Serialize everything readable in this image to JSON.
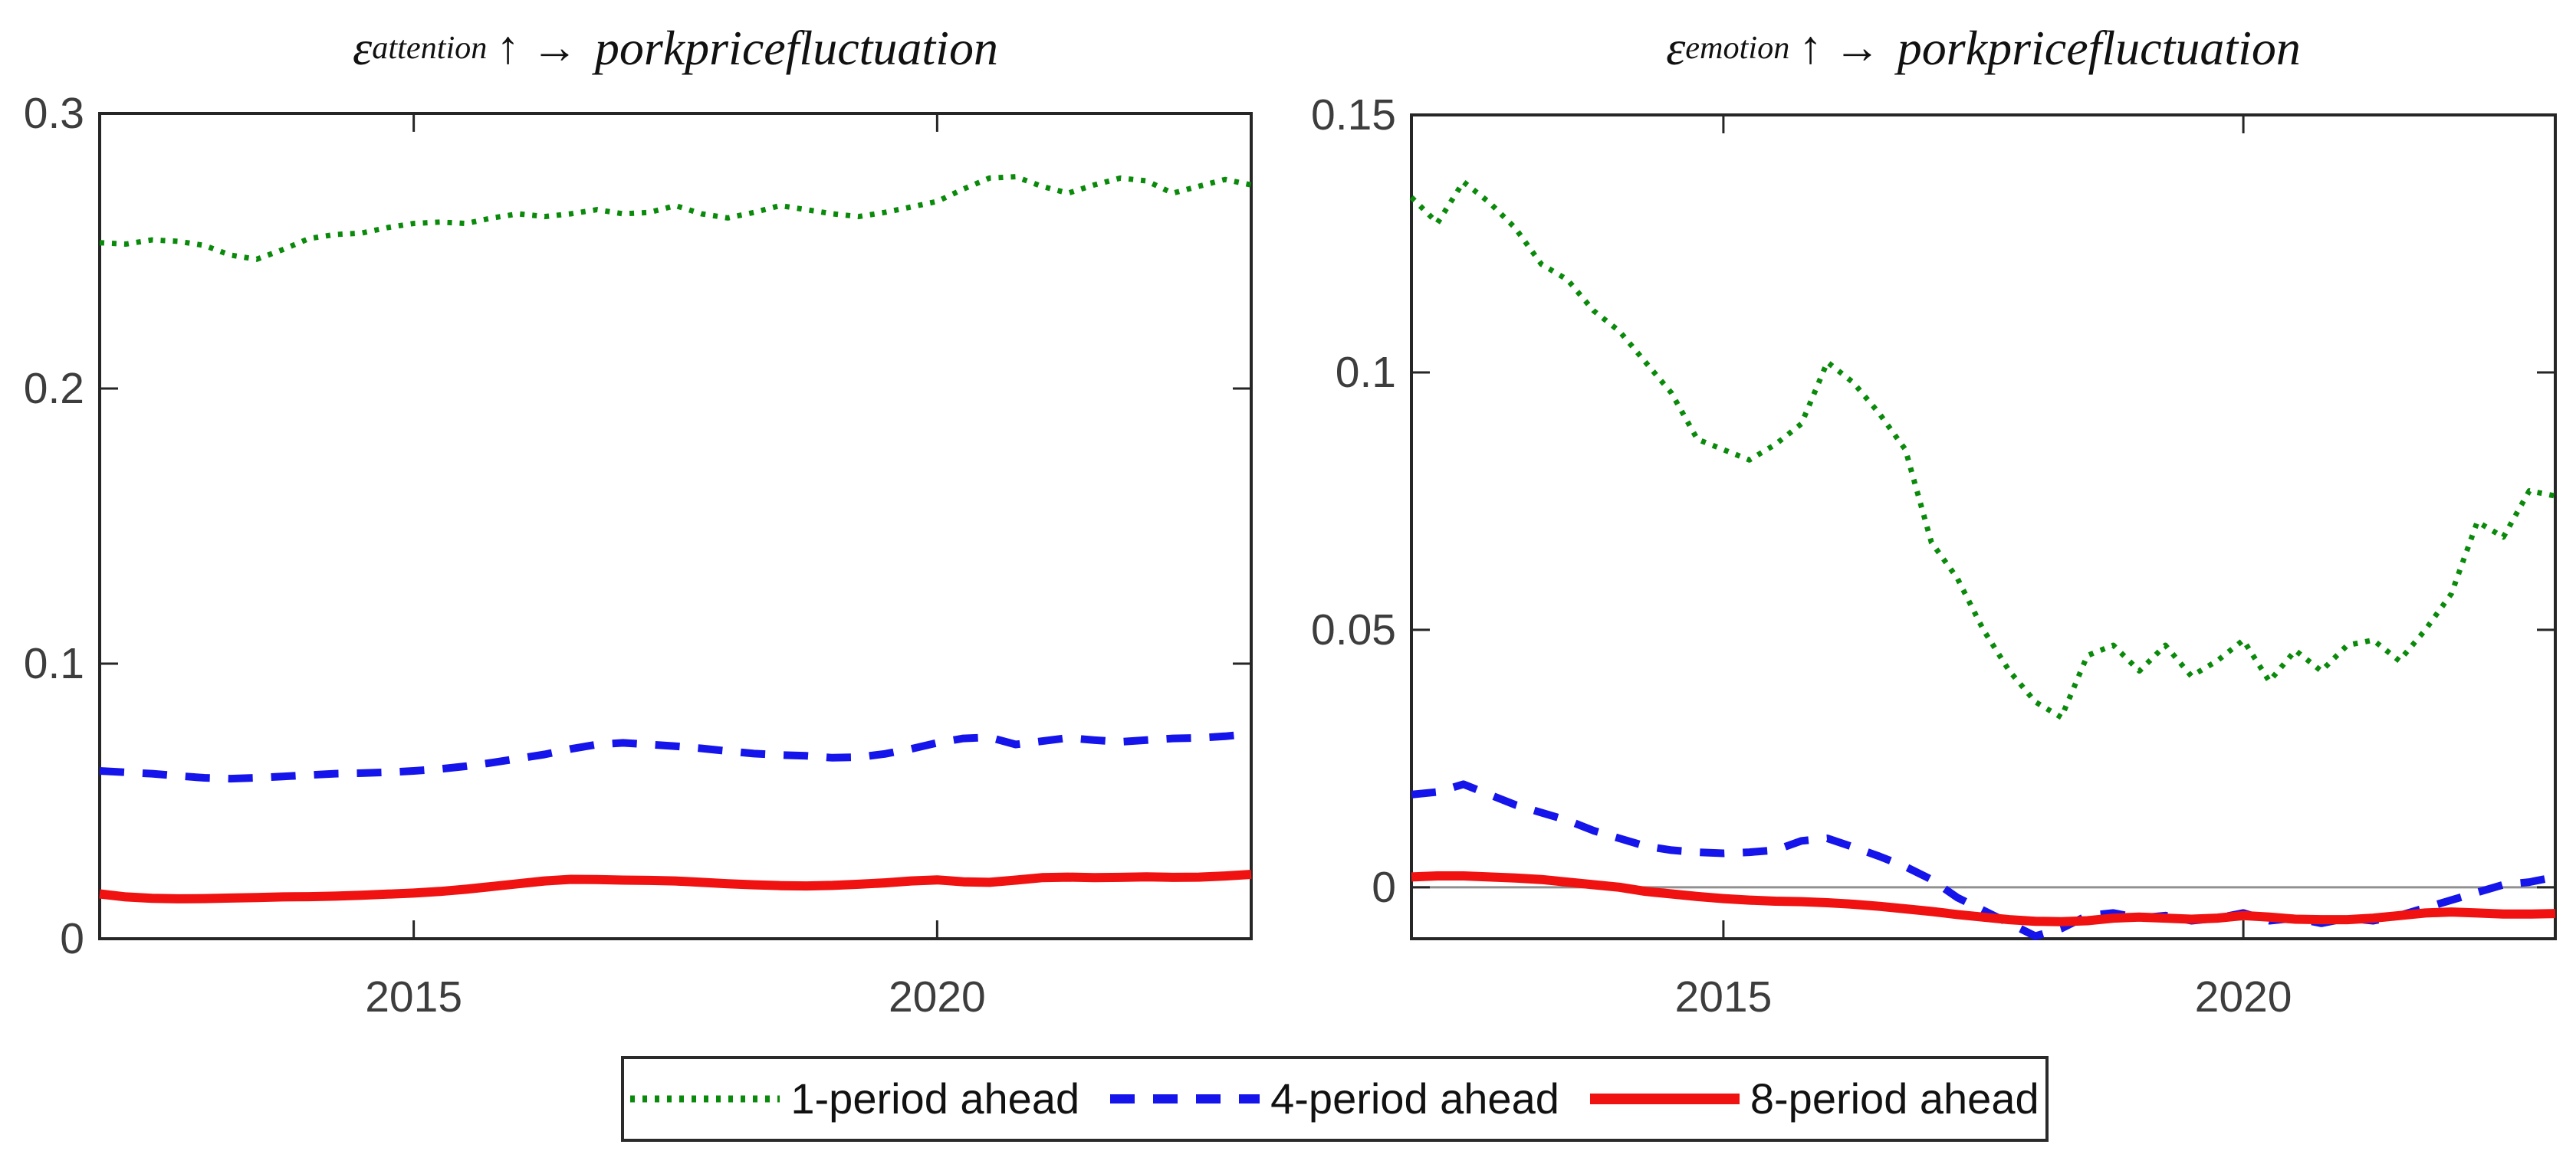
{
  "figure": {
    "background": "#ffffff",
    "axis_color": "#262626",
    "tick_label_color": "#3d3d3d",
    "zero_line_color": "#909090"
  },
  "legend": {
    "entries": [
      {
        "label": "1-period ahead",
        "color": "#0a8a0a",
        "style": "dotted"
      },
      {
        "label": "4-period ahead",
        "color": "#1414eb",
        "style": "dashed"
      },
      {
        "label": "8-period ahead",
        "color": "#f01111",
        "style": "solid"
      }
    ]
  },
  "chart_data": [
    {
      "type": "line",
      "panel": "left",
      "title": {
        "epsilon": "ε",
        "subscript": "attention",
        "arrows": "↑ →",
        "rest": "porkpricefluctuation"
      },
      "x_start": 2012,
      "x_step": 0.25,
      "xlim": [
        2012,
        2023
      ],
      "ylim": [
        0,
        0.3
      ],
      "xticks": [
        2015,
        2020
      ],
      "xtick_labels": [
        "2015",
        "2020"
      ],
      "yticks": [
        0,
        0.1,
        0.2,
        0.3
      ],
      "ytick_labels": [
        "0",
        "0.1",
        "0.2",
        "0.3"
      ],
      "grid": false,
      "zero_line": false,
      "series": [
        {
          "name": "1-period ahead",
          "color": "#0a8a0a",
          "dash": "dotted",
          "values": [
            0.253,
            0.2525,
            0.254,
            0.2535,
            0.252,
            0.2485,
            0.247,
            0.2505,
            0.2545,
            0.256,
            0.2565,
            0.2585,
            0.26,
            0.2605,
            0.26,
            0.262,
            0.2635,
            0.2625,
            0.2635,
            0.265,
            0.2635,
            0.264,
            0.2665,
            0.2635,
            0.262,
            0.264,
            0.2665,
            0.265,
            0.2635,
            0.2625,
            0.264,
            0.266,
            0.268,
            0.2725,
            0.2765,
            0.277,
            0.2735,
            0.271,
            0.274,
            0.2765,
            0.2755,
            0.271,
            0.2735,
            0.276,
            0.274
          ]
        },
        {
          "name": "4-period ahead",
          "color": "#1414eb",
          "dash": "dashed",
          "values": [
            0.061,
            0.0605,
            0.06,
            0.0592,
            0.0585,
            0.0582,
            0.0585,
            0.059,
            0.0595,
            0.06,
            0.0602,
            0.0605,
            0.061,
            0.0617,
            0.0627,
            0.064,
            0.0655,
            0.067,
            0.069,
            0.0706,
            0.0712,
            0.0706,
            0.07,
            0.0692,
            0.0682,
            0.0673,
            0.0668,
            0.0665,
            0.0658,
            0.066,
            0.0672,
            0.069,
            0.0712,
            0.0728,
            0.0732,
            0.0706,
            0.0718,
            0.073,
            0.0722,
            0.0716,
            0.0722,
            0.0728,
            0.073,
            0.0736,
            0.0745
          ]
        },
        {
          "name": "8-period ahead",
          "color": "#f01111",
          "dash": "solid",
          "values": [
            0.0163,
            0.0152,
            0.0147,
            0.0145,
            0.0146,
            0.0148,
            0.015,
            0.0152,
            0.0153,
            0.0155,
            0.0158,
            0.0162,
            0.0166,
            0.0172,
            0.018,
            0.019,
            0.02,
            0.021,
            0.0216,
            0.0215,
            0.0213,
            0.0212,
            0.021,
            0.0205,
            0.02,
            0.0196,
            0.0193,
            0.0192,
            0.0194,
            0.0198,
            0.0203,
            0.021,
            0.0214,
            0.0207,
            0.0205,
            0.0213,
            0.0222,
            0.0224,
            0.0222,
            0.0223,
            0.0225,
            0.0223,
            0.0224,
            0.0228,
            0.0234
          ]
        }
      ]
    },
    {
      "type": "line",
      "panel": "right",
      "title": {
        "epsilon": "ε",
        "subscript": "emotion",
        "arrows": "↑ →",
        "rest": "porkpricefluctuation"
      },
      "x_start": 2012,
      "x_step": 0.25,
      "xlim": [
        2012,
        2023
      ],
      "ylim": [
        -0.01,
        0.15
      ],
      "xticks": [
        2015,
        2020
      ],
      "xtick_labels": [
        "2015",
        "2020"
      ],
      "yticks": [
        0,
        0.05,
        0.1,
        0.15
      ],
      "ytick_labels": [
        "0",
        "0.05",
        "0.1",
        "0.15"
      ],
      "grid": false,
      "zero_line": true,
      "series": [
        {
          "name": "1-period ahead",
          "color": "#0a8a0a",
          "dash": "dotted",
          "values": [
            0.134,
            0.129,
            0.137,
            0.133,
            0.128,
            0.121,
            0.118,
            0.112,
            0.108,
            0.102,
            0.096,
            0.087,
            0.085,
            0.083,
            0.086,
            0.09,
            0.102,
            0.098,
            0.092,
            0.085,
            0.067,
            0.06,
            0.05,
            0.042,
            0.036,
            0.033,
            0.045,
            0.047,
            0.042,
            0.047,
            0.041,
            0.044,
            0.048,
            0.04,
            0.046,
            0.042,
            0.047,
            0.048,
            0.044,
            0.05,
            0.057,
            0.071,
            0.068,
            0.077,
            0.076
          ]
        },
        {
          "name": "4-period ahead",
          "color": "#1414eb",
          "dash": "dashed",
          "values": [
            0.018,
            0.0185,
            0.02,
            0.018,
            0.016,
            0.0145,
            0.013,
            0.011,
            0.0095,
            0.008,
            0.0072,
            0.0068,
            0.0066,
            0.0068,
            0.0072,
            0.009,
            0.0095,
            0.0078,
            0.006,
            0.004,
            0.0015,
            -0.002,
            -0.0045,
            -0.007,
            -0.0095,
            -0.008,
            -0.0055,
            -0.005,
            -0.006,
            -0.0055,
            -0.0065,
            -0.006,
            -0.005,
            -0.0065,
            -0.006,
            -0.007,
            -0.006,
            -0.0065,
            -0.0055,
            -0.004,
            -0.0025,
            -0.001,
            0.0005,
            0.001,
            0.002
          ]
        },
        {
          "name": "8-period ahead",
          "color": "#f01111",
          "dash": "solid",
          "values": [
            0.002,
            0.0022,
            0.0022,
            0.002,
            0.0018,
            0.0015,
            0.001,
            0.0005,
            0.0,
            -0.0008,
            -0.0013,
            -0.0018,
            -0.0022,
            -0.0025,
            -0.0027,
            -0.0028,
            -0.003,
            -0.0033,
            -0.0037,
            -0.0042,
            -0.0047,
            -0.0053,
            -0.0058,
            -0.0063,
            -0.0066,
            -0.0067,
            -0.0065,
            -0.006,
            -0.0058,
            -0.006,
            -0.0062,
            -0.006,
            -0.0055,
            -0.0058,
            -0.0062,
            -0.0063,
            -0.0063,
            -0.006,
            -0.0055,
            -0.005,
            -0.0048,
            -0.005,
            -0.0052,
            -0.0052,
            -0.0051
          ]
        }
      ]
    }
  ]
}
